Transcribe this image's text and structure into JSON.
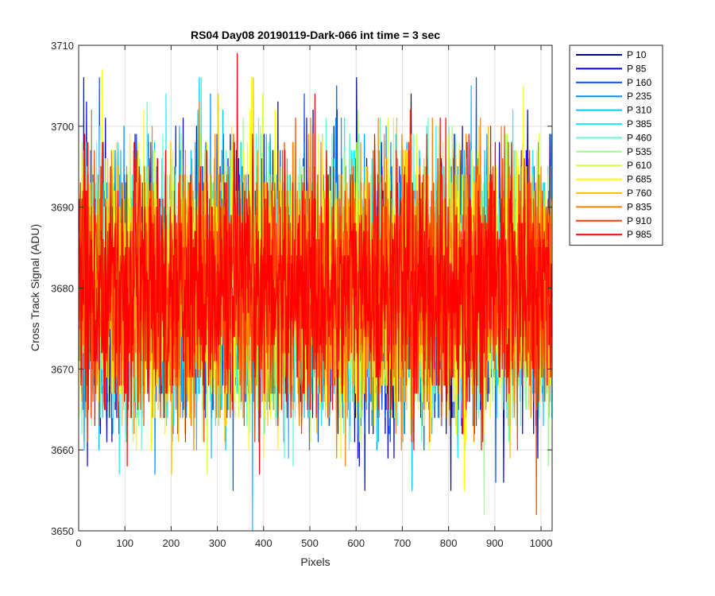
{
  "chart_data": {
    "type": "line",
    "title": "RS04 Day08 20190119-Dark-066 int time = 3 sec",
    "xlabel": "Pixels",
    "ylabel": "Cross Track Signal (ADU)",
    "xlim": [
      0,
      1024
    ],
    "ylim": [
      3650,
      3710
    ],
    "xticks": [
      0,
      100,
      200,
      300,
      400,
      500,
      600,
      700,
      800,
      900,
      1000
    ],
    "yticks": [
      3650,
      3660,
      3670,
      3680,
      3690,
      3700,
      3710
    ],
    "grid": true,
    "legend_position": "outside-right-top",
    "noise_model": {
      "points_per_series": 1024,
      "mean": 3680,
      "std": 7.5
    },
    "series": [
      {
        "name": "P 10",
        "color": "#00008f"
      },
      {
        "name": "P 85",
        "color": "#0000e6"
      },
      {
        "name": "P 160",
        "color": "#0050ff"
      },
      {
        "name": "P 235",
        "color": "#0090ff"
      },
      {
        "name": "P 310",
        "color": "#00c4ff"
      },
      {
        "name": "P 385",
        "color": "#1af0ff"
      },
      {
        "name": "P 460",
        "color": "#60ffc8"
      },
      {
        "name": "P 535",
        "color": "#9cff8a"
      },
      {
        "name": "P 610",
        "color": "#d4ff40"
      },
      {
        "name": "P 685",
        "color": "#ffff00"
      },
      {
        "name": "P 760",
        "color": "#ffc200"
      },
      {
        "name": "P 835",
        "color": "#ff8000"
      },
      {
        "name": "P 910",
        "color": "#ff3c00"
      },
      {
        "name": "P 985",
        "color": "#ff0000"
      }
    ],
    "notable_extremes": [
      {
        "series": "P 310",
        "x": 375,
        "y": 3650
      },
      {
        "series": "P 985",
        "x": 342,
        "y": 3709
      },
      {
        "series": "P 685",
        "x": 50,
        "y": 3707
      },
      {
        "series": "P 85",
        "x": 10,
        "y": 3706
      }
    ]
  }
}
